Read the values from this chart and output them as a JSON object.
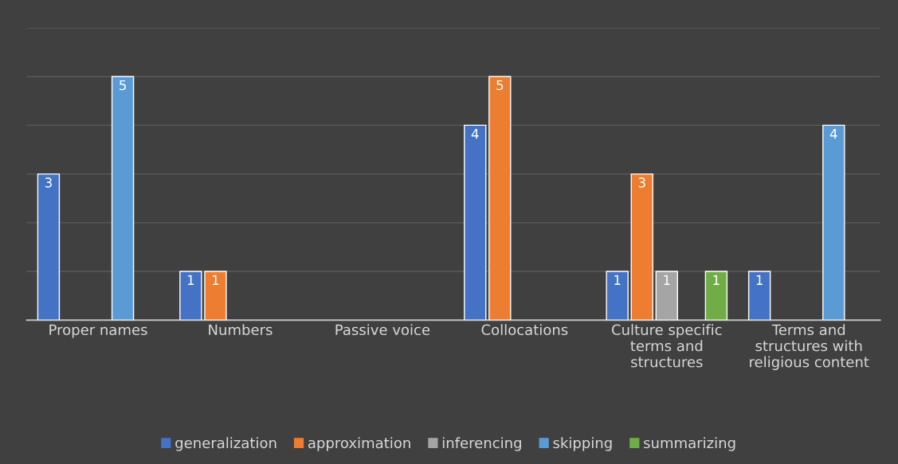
{
  "chart_data": {
    "type": "bar",
    "categories": [
      "Proper names",
      "Numbers",
      "Passive voice",
      "Collocations",
      "Culture specific\nterms and\nstructures",
      "Terms and\nstructures with\nreligious content"
    ],
    "series": [
      {
        "name": "generalization",
        "color": "#4472c4",
        "values": [
          3,
          1,
          null,
          4,
          1,
          1
        ]
      },
      {
        "name": "approximation",
        "color": "#ed7d31",
        "values": [
          null,
          1,
          null,
          5,
          3,
          null
        ]
      },
      {
        "name": "inferencing",
        "color": "#a5a5a5",
        "values": [
          null,
          null,
          null,
          null,
          1,
          null
        ]
      },
      {
        "name": "skipping",
        "color": "#5b9bd5",
        "values": [
          5,
          null,
          null,
          null,
          null,
          4
        ]
      },
      {
        "name": "summarizing",
        "color": "#70ad47",
        "values": [
          null,
          null,
          null,
          null,
          1,
          null
        ]
      }
    ],
    "ylim": [
      0,
      6
    ],
    "yticks": [
      {
        "value": 0,
        "label": null
      },
      {
        "value": 1,
        "label": null
      },
      {
        "value": 2,
        "label": null
      },
      {
        "value": 3,
        "label": null
      },
      {
        "value": 4,
        "label": null
      },
      {
        "value": 5,
        "label": null
      },
      {
        "value": 6,
        "label": null
      }
    ],
    "tick_labels": "x",
    "grid": "y",
    "legend": "bottom",
    "data_labels": true
  }
}
